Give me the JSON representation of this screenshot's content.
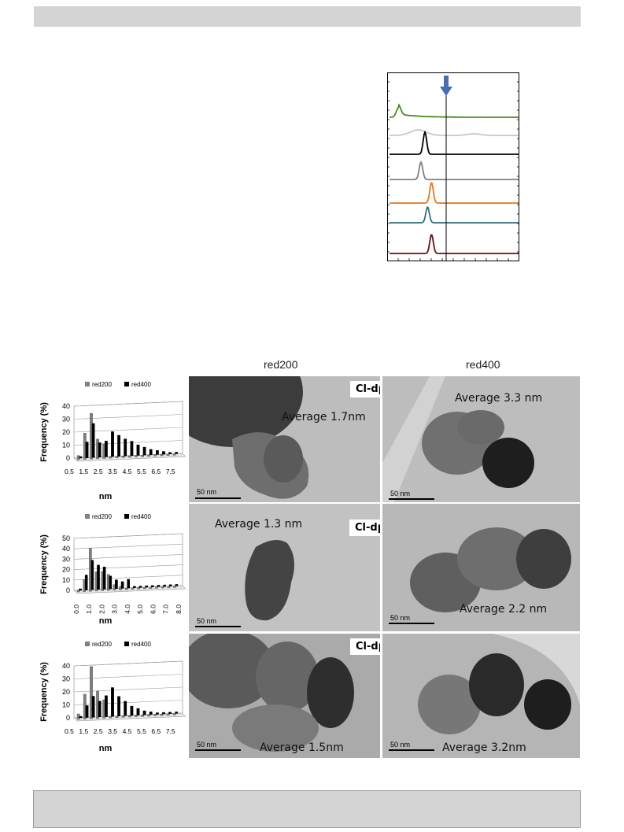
{
  "column_headers": {
    "red200": "red200",
    "red400": "red400"
  },
  "rows": [
    {
      "sample": "Cl-dp-ME-Al",
      "avg_red200": "Average 1.7nm",
      "avg_red400": "Average 3.3 nm",
      "scale_left": "50 nm",
      "scale_right": "50 nm"
    },
    {
      "sample": "Cl-dp-ME-Ce",
      "avg_red200": "Average 1.3 nm",
      "avg_red400": "Average 2.2 nm",
      "scale_left": "50 nm",
      "scale_right": "50 nm"
    },
    {
      "sample": "Cl-dp-ME-Zr",
      "avg_red200": "Average 1.5nm",
      "avg_red400": "Average 3.2nm",
      "scale_left": "50 nm",
      "scale_right": "50 nm"
    }
  ],
  "chart_data": [
    {
      "type": "line",
      "title": "",
      "series": [
        {
          "color": "#4a8c1c",
          "peak_x": 0.05
        },
        {
          "color": "#c8c8c8",
          "peak_x": 0.2
        },
        {
          "color": "#000000",
          "peak_x": 0.25
        },
        {
          "color": "#808080",
          "peak_x": 0.22
        },
        {
          "color": "#e07820",
          "peak_x": 0.3
        },
        {
          "color": "#2f6f7a",
          "peak_x": 0.27
        },
        {
          "color": "#6a0f0f",
          "peak_x": 0.3
        }
      ],
      "marker": "arrow-down",
      "grid": false
    },
    {
      "type": "bar",
      "ylabel": "Frequency (%)",
      "xlabel": "nm",
      "legend": [
        "red200",
        "red400"
      ],
      "ylim": [
        0,
        40
      ],
      "yticks": [
        "0",
        "10",
        "20",
        "30",
        "40"
      ],
      "xtick_labels": [
        "0.5",
        "1.5",
        "2.5",
        "3.5",
        "4.5",
        "5.5",
        "6.5",
        "7.5"
      ],
      "categories": [
        0.5,
        1.0,
        1.5,
        2.0,
        2.5,
        3.0,
        3.5,
        4.0,
        4.5,
        5.0,
        5.5,
        6.0,
        6.5,
        7.0,
        7.5,
        8.0
      ],
      "series": [
        {
          "name": "red200",
          "color": "#808080",
          "values": [
            2,
            19,
            34,
            14,
            10,
            0,
            0,
            0,
            0,
            0,
            0,
            0,
            0,
            0,
            0,
            0
          ]
        },
        {
          "name": "red400",
          "color": "#000000",
          "values": [
            0,
            11,
            25,
            10,
            11,
            18,
            15,
            12,
            10,
            7,
            5,
            3,
            2,
            1,
            0,
            0
          ]
        }
      ]
    },
    {
      "type": "bar",
      "ylabel": "Frequency (%)",
      "xlabel": "nm",
      "legend": [
        "red200",
        "red400"
      ],
      "ylim": [
        0,
        50
      ],
      "yticks": [
        "0",
        "10",
        "20",
        "30",
        "40",
        "50"
      ],
      "xtick_labels": [
        "0.0",
        "1.0",
        "2.0",
        "3.0",
        "4.0",
        "5.0",
        "6.0",
        "7.0",
        "8.0"
      ],
      "categories": [
        0.0,
        0.5,
        1.0,
        1.5,
        2.0,
        2.5,
        3.0,
        3.5,
        4.0,
        4.5,
        5.0,
        5.5,
        6.0,
        6.5,
        7.0,
        7.5,
        8.0
      ],
      "series": [
        {
          "name": "red200",
          "color": "#808080",
          "values": [
            0,
            10,
            40,
            17,
            17,
            14,
            4,
            2,
            0,
            0,
            0,
            0,
            0,
            0,
            0,
            0,
            0
          ]
        },
        {
          "name": "red400",
          "color": "#000000",
          "values": [
            0,
            13,
            27,
            22,
            20,
            11,
            7,
            5,
            7,
            0,
            0,
            0,
            0,
            0,
            0,
            0,
            0
          ]
        }
      ]
    },
    {
      "type": "bar",
      "ylabel": "Frequency (%)",
      "xlabel": "nm",
      "legend": [
        "red200",
        "red400"
      ],
      "ylim": [
        0,
        40
      ],
      "yticks": [
        "0",
        "10",
        "20",
        "30",
        "40"
      ],
      "xtick_labels": [
        "0.5",
        "1.5",
        "2.5",
        "3.5",
        "4.5",
        "5.5",
        "6.5",
        "7.5"
      ],
      "categories": [
        0.5,
        1.0,
        1.5,
        2.0,
        2.5,
        3.0,
        3.5,
        4.0,
        4.5,
        5.0,
        5.5,
        6.0,
        6.5,
        7.0,
        7.5,
        8.0
      ],
      "series": [
        {
          "name": "red200",
          "color": "#808080",
          "values": [
            3,
            18,
            39,
            20,
            13,
            0,
            0,
            0,
            0,
            0,
            0,
            0,
            0,
            0,
            0,
            0
          ]
        },
        {
          "name": "red400",
          "color": "#000000",
          "values": [
            0,
            8,
            15,
            11,
            15,
            21,
            14,
            10,
            6,
            4,
            2,
            1,
            0,
            0,
            0,
            0
          ]
        }
      ]
    }
  ]
}
